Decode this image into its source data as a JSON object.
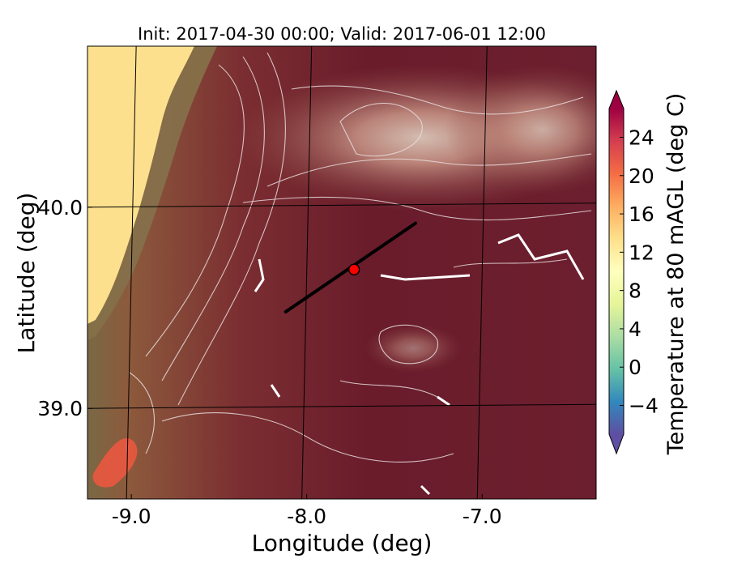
{
  "chart_data": {
    "type": "heatmap",
    "title": "Init: 2017-04-30 00:00; Valid: 2017-06-01 12:00",
    "xlabel": "Longitude (deg)",
    "ylabel": "Latitude (deg)",
    "xlim": [
      -9.25,
      -6.35
    ],
    "ylim": [
      38.55,
      40.8
    ],
    "x_ticks": [
      {
        "value": -9.0,
        "label": "-9.0"
      },
      {
        "value": -8.0,
        "label": "-8.0"
      },
      {
        "value": -7.0,
        "label": "-7.0"
      }
    ],
    "y_ticks": [
      {
        "value": 40.0,
        "label": "40.0"
      },
      {
        "value": 39.0,
        "label": "39.0"
      }
    ],
    "colorbar": {
      "label": "Temperature at 80 mAGL (deg C)",
      "min": -7,
      "max": 27,
      "extend": "both",
      "ticks": [
        {
          "value": 24,
          "label": "24"
        },
        {
          "value": 20,
          "label": "20"
        },
        {
          "value": 16,
          "label": "16"
        },
        {
          "value": 12,
          "label": "12"
        },
        {
          "value": 8,
          "label": "8"
        },
        {
          "value": 4,
          "label": "4"
        },
        {
          "value": 0,
          "label": "0"
        },
        {
          "value": -4,
          "label": "−4"
        }
      ],
      "colors": [
        "#5e4fa2",
        "#3288bd",
        "#66c2a5",
        "#abdda4",
        "#e6f598",
        "#ffffbf",
        "#fee08b",
        "#fdae61",
        "#f46d43",
        "#d53e4f",
        "#9e0142"
      ]
    },
    "cross_section_line": {
      "start": [
        -8.12,
        39.48
      ],
      "end": [
        -7.38,
        39.92
      ]
    },
    "marker": {
      "lon": -7.73,
      "lat": 39.69,
      "color": "#ff0000"
    },
    "colors": {
      "ocean": "#fde08d",
      "coast": "#856d45",
      "west": "#8a4433",
      "interior": "#6b1c2c",
      "highlands": "#bf8e7f",
      "warm_spot": "#e9583f",
      "contour": "#e8dede"
    }
  }
}
